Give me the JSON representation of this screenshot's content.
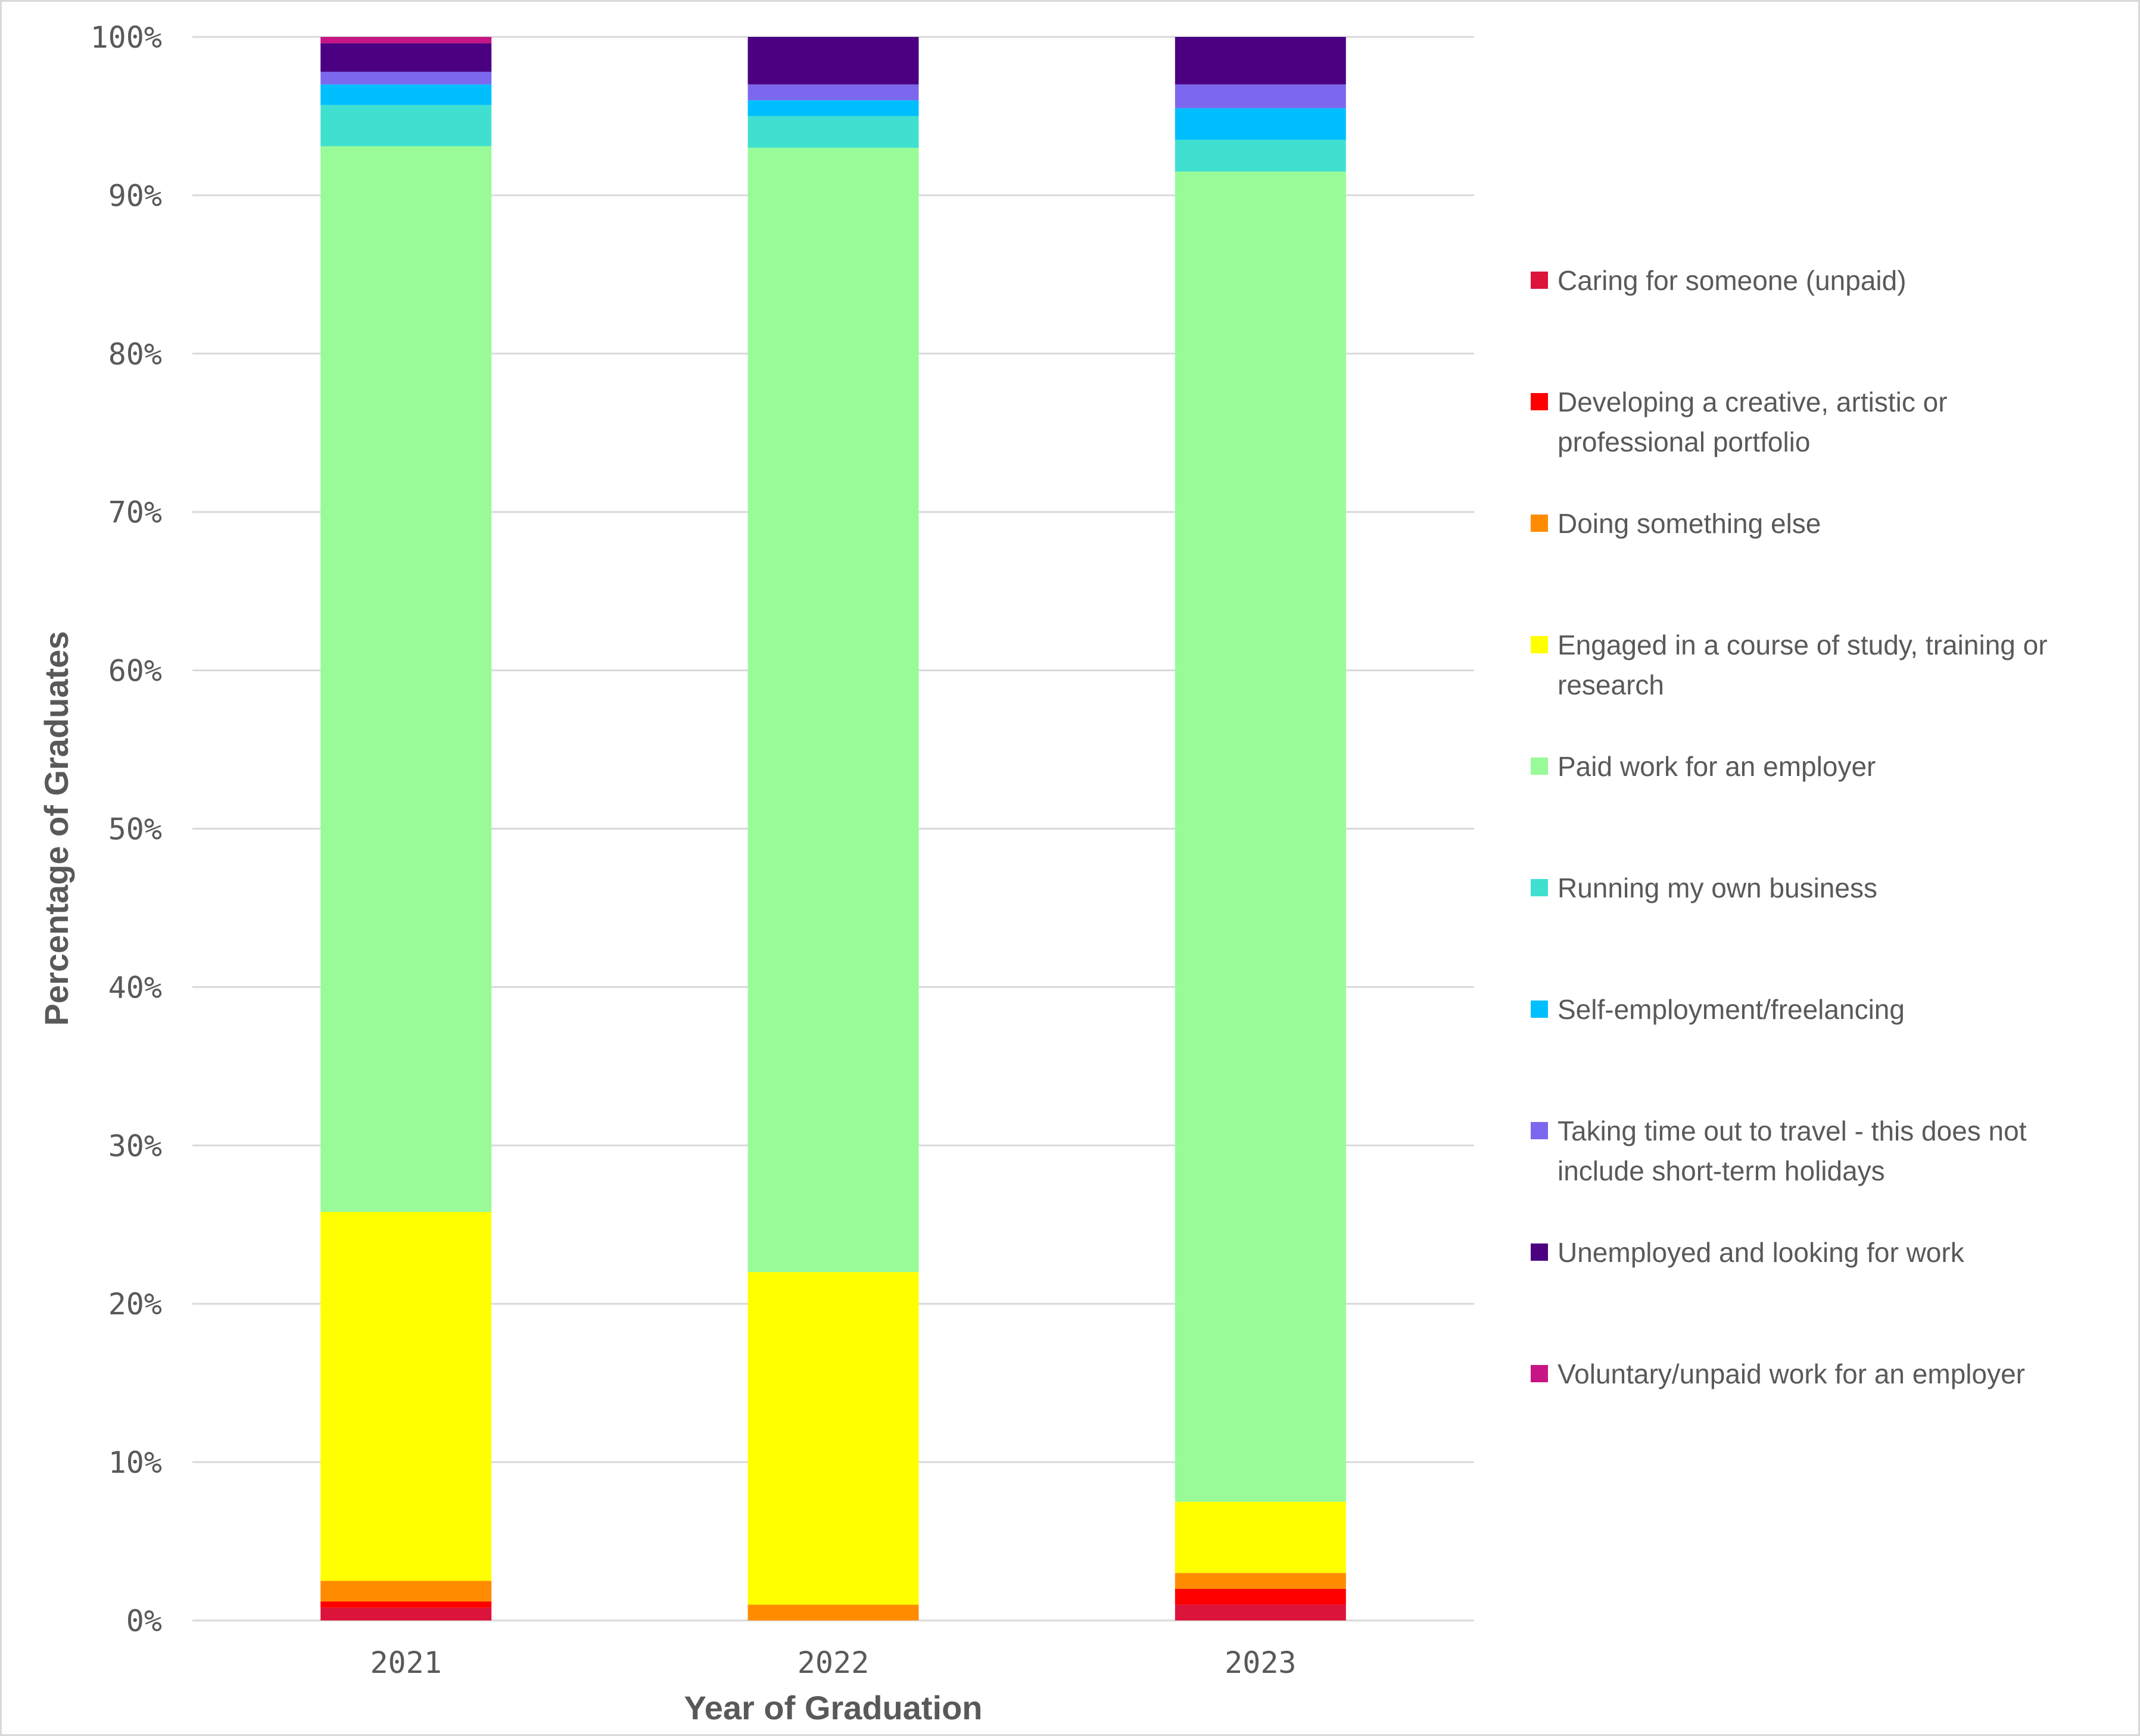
{
  "chart_data": {
    "type": "bar",
    "stacked": true,
    "normalized": true,
    "title": "",
    "xlabel": "Year of Graduation",
    "ylabel": "Percentage of Graduates",
    "ylim": [
      0,
      100
    ],
    "yticks": [
      "0%",
      "10%",
      "20%",
      "30%",
      "40%",
      "50%",
      "60%",
      "70%",
      "80%",
      "90%",
      "100%"
    ],
    "grid": true,
    "legend_position": "right",
    "categories": [
      "2021",
      "2022",
      "2023"
    ],
    "series": [
      {
        "name": "Caring for someone (unpaid)",
        "color": "#DC143C",
        "values": [
          0.8,
          0,
          1
        ]
      },
      {
        "name": "Developing a creative, artistic or professional portfolio",
        "color": "#FF0000",
        "values": [
          0.4,
          0,
          1
        ]
      },
      {
        "name": "Doing something else",
        "color": "#FF8C00",
        "values": [
          1.3,
          1,
          1
        ]
      },
      {
        "name": "Engaged in a course of study, training or research",
        "color": "#FFFF00",
        "values": [
          23.3,
          21,
          4.5
        ]
      },
      {
        "name": "Paid work for an employer",
        "color": "#98FB98",
        "values": [
          67.3,
          71,
          84
        ]
      },
      {
        "name": "Running my own business",
        "color": "#40E0D0",
        "values": [
          2.6,
          2,
          2
        ]
      },
      {
        "name": "Self-employment/freelancing",
        "color": "#00BFFF",
        "values": [
          1.3,
          1,
          2
        ]
      },
      {
        "name": "Taking time out to travel - this does not include short-term holidays",
        "color": "#7B68EE",
        "values": [
          0.8,
          1,
          1.5
        ]
      },
      {
        "name": "Unemployed and looking for work",
        "color": "#4B0082",
        "values": [
          1.8,
          3,
          3
        ]
      },
      {
        "name": "Voluntary/unpaid work for an employer",
        "color": "#C71585",
        "values": [
          0.4,
          0,
          0
        ]
      }
    ]
  },
  "legend": {
    "items": [
      {
        "lines": [
          "Caring for someone (unpaid)"
        ]
      },
      {
        "lines": [
          "Developing a creative, artistic or",
          "professional portfolio"
        ]
      },
      {
        "lines": [
          "Doing something else"
        ]
      },
      {
        "lines": [
          "Engaged in a course of study, training or",
          "research"
        ]
      },
      {
        "lines": [
          "Paid work for an employer"
        ]
      },
      {
        "lines": [
          "Running my own business"
        ]
      },
      {
        "lines": [
          "Self-employment/freelancing"
        ]
      },
      {
        "lines": [
          "Taking time out to travel - this does not",
          "include short-term holidays"
        ]
      },
      {
        "lines": [
          "Unemployed and looking for work"
        ]
      },
      {
        "lines": [
          "Voluntary/unpaid work for an employer"
        ]
      }
    ]
  },
  "colors": {
    "text": "#595959",
    "grid": "#D9D9D9",
    "border": "#D9D9D9"
  }
}
